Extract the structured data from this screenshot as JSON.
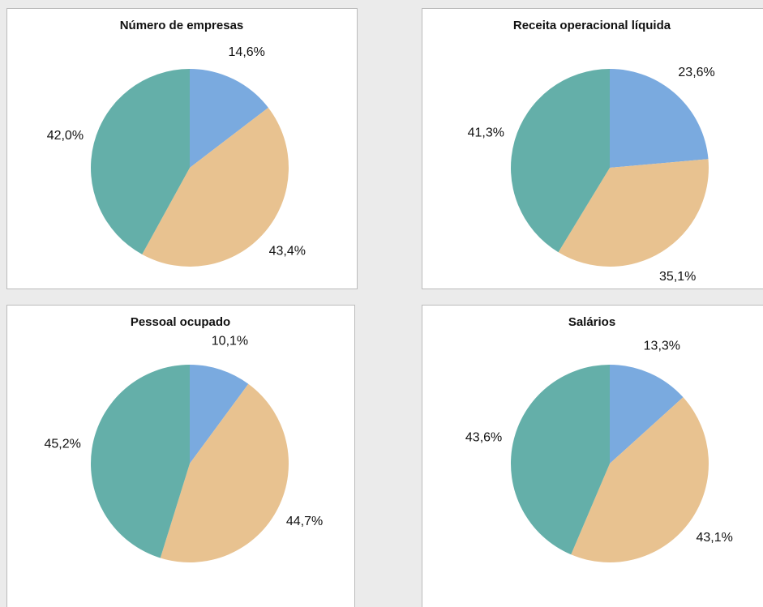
{
  "chart_data": [
    {
      "type": "pie",
      "title": "Número de empresas",
      "values": [
        14.6,
        43.4,
        42.0
      ],
      "value_labels": [
        "14,6%",
        "43,4%",
        "42,0%"
      ],
      "colors": [
        "#7aaadf",
        "#e8c290",
        "#64afa9"
      ]
    },
    {
      "type": "pie",
      "title": "Receita operacional líquida",
      "values": [
        23.6,
        35.1,
        41.3
      ],
      "value_labels": [
        "23,6%",
        "35,1%",
        "41,3%"
      ],
      "colors": [
        "#7aaadf",
        "#e8c290",
        "#64afa9"
      ]
    },
    {
      "type": "pie",
      "title": "Pessoal ocupado",
      "values": [
        10.1,
        44.7,
        45.2
      ],
      "value_labels": [
        "10,1%",
        "44,7%",
        "45,2%"
      ],
      "colors": [
        "#7aaadf",
        "#e8c290",
        "#64afa9"
      ]
    },
    {
      "type": "pie",
      "title": "Salários",
      "values": [
        13.3,
        43.1,
        43.6
      ],
      "value_labels": [
        "13,3%",
        "43,1%",
        "43,6%"
      ],
      "colors": [
        "#7aaadf",
        "#e8c290",
        "#64afa9"
      ]
    }
  ]
}
